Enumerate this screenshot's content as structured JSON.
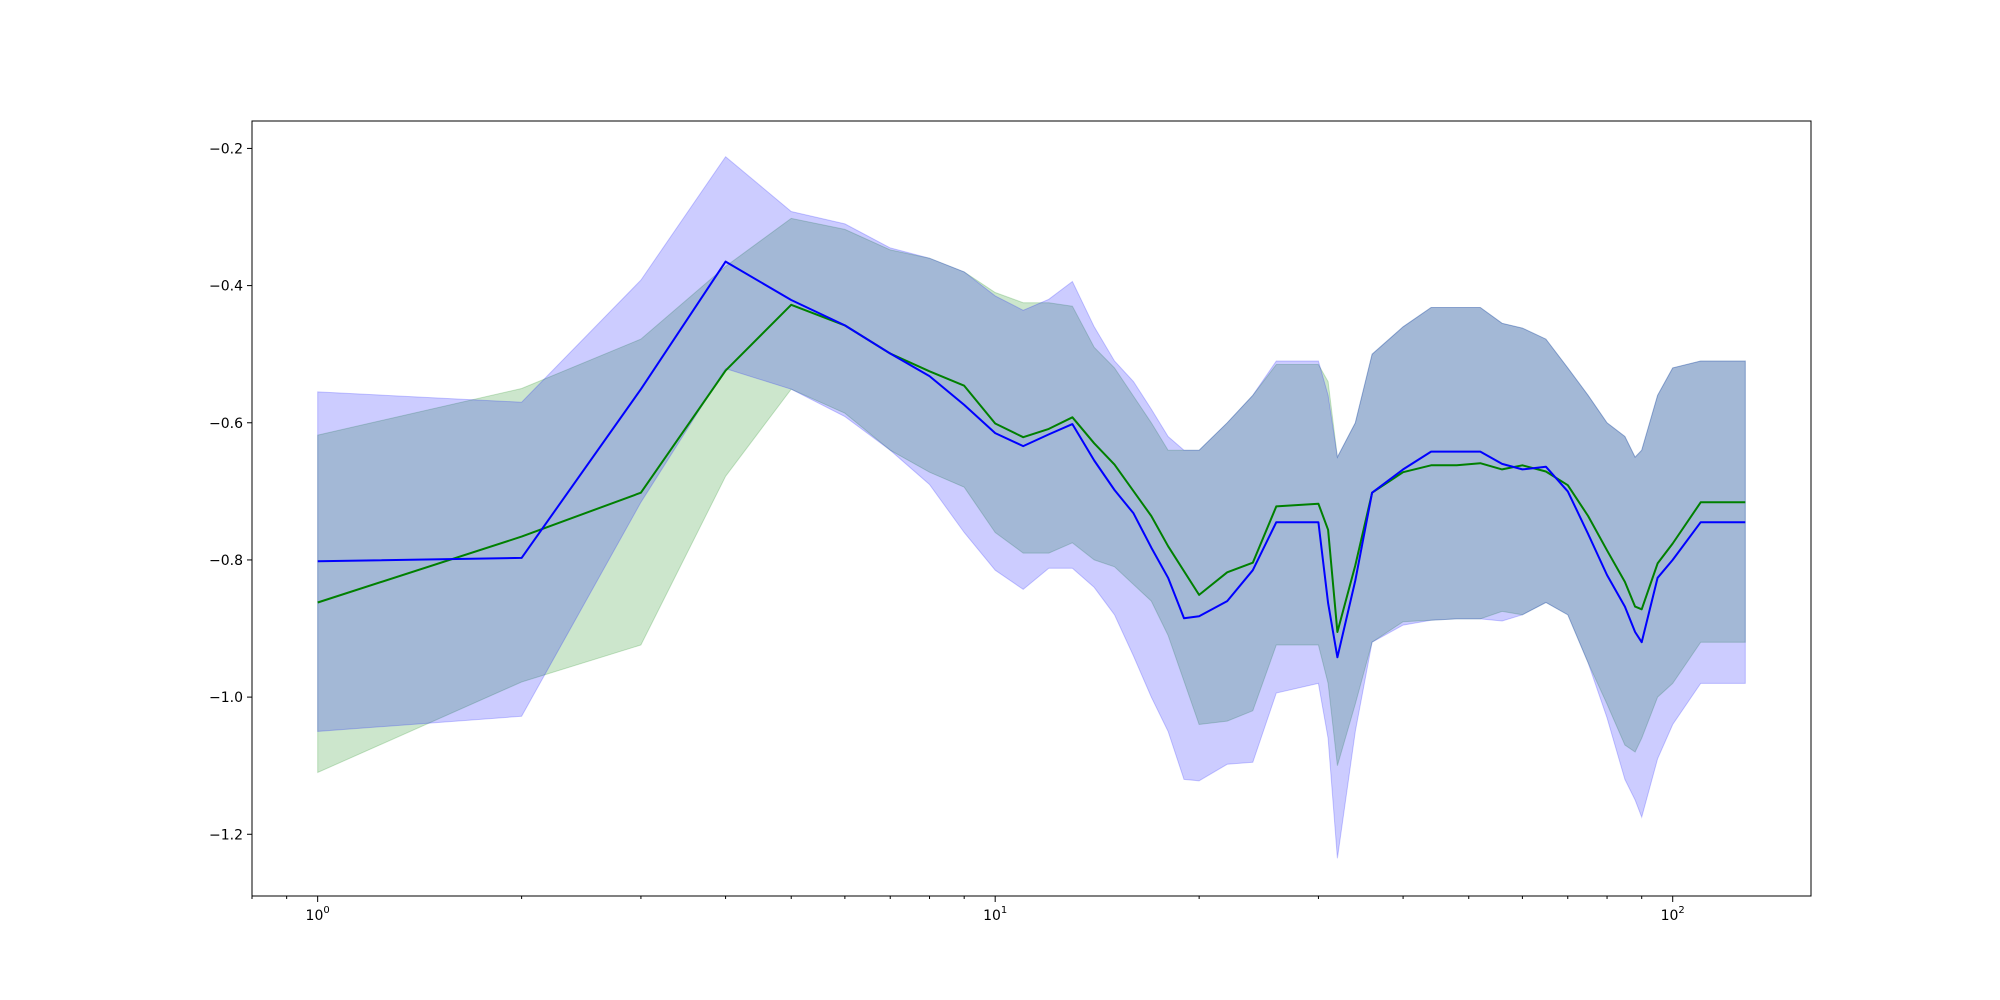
{
  "chart_data": {
    "type": "line",
    "x_scale": "log",
    "xlim": [
      0.8,
      160
    ],
    "ylim": [
      -1.29,
      -0.16
    ],
    "grid": false,
    "legend": "none",
    "x_ticks": [
      {
        "value": 1,
        "base": "10",
        "exp": "0"
      },
      {
        "value": 10,
        "base": "10",
        "exp": "1"
      },
      {
        "value": 100,
        "base": "10",
        "exp": "2"
      }
    ],
    "y_ticks": [
      {
        "value": -0.2,
        "label": "−0.2"
      },
      {
        "value": -0.4,
        "label": "−0.4"
      },
      {
        "value": -0.6,
        "label": "−0.6"
      },
      {
        "value": -0.8,
        "label": "−0.8"
      },
      {
        "value": -1.0,
        "label": "−1.0"
      },
      {
        "value": -1.2,
        "label": "−1.2"
      }
    ],
    "series": [
      {
        "color": "#008000",
        "band_color": "#008000",
        "band_opacity": 0.2,
        "x": [
          1,
          2,
          3,
          4,
          5,
          6,
          7,
          8,
          9,
          10,
          11,
          12,
          13,
          14,
          15,
          17,
          18,
          20,
          22,
          24,
          26,
          30,
          31,
          32,
          34,
          36,
          40,
          44,
          48,
          52,
          56,
          60,
          65,
          70,
          75,
          80,
          85,
          88,
          90,
          95,
          100,
          110,
          128
        ],
        "y": [
          -0.862,
          -0.766,
          -0.702,
          -0.524,
          -0.428,
          -0.458,
          -0.499,
          -0.525,
          -0.546,
          -0.601,
          -0.621,
          -0.609,
          -0.592,
          -0.63,
          -0.661,
          -0.736,
          -0.78,
          -0.851,
          -0.818,
          -0.804,
          -0.722,
          -0.718,
          -0.756,
          -0.905,
          -0.808,
          -0.702,
          -0.672,
          -0.662,
          -0.662,
          -0.659,
          -0.668,
          -0.662,
          -0.671,
          -0.691,
          -0.736,
          -0.786,
          -0.832,
          -0.868,
          -0.872,
          -0.805,
          -0.776,
          -0.716,
          -0.716
        ],
        "lower": [
          -1.11,
          -0.978,
          -0.924,
          -0.678,
          -0.551,
          -0.586,
          -0.64,
          -0.672,
          -0.694,
          -0.76,
          -0.79,
          -0.79,
          -0.775,
          -0.8,
          -0.81,
          -0.86,
          -0.91,
          -1.04,
          -1.035,
          -1.02,
          -0.924,
          -0.924,
          -0.98,
          -1.1,
          -1.01,
          -0.92,
          -0.89,
          -0.888,
          -0.886,
          -0.886,
          -0.875,
          -0.88,
          -0.862,
          -0.88,
          -0.95,
          -1.01,
          -1.07,
          -1.08,
          -1.06,
          -1.0,
          -0.98,
          -0.92,
          -0.92
        ],
        "upper": [
          -0.618,
          -0.55,
          -0.478,
          -0.372,
          -0.302,
          -0.318,
          -0.348,
          -0.36,
          -0.38,
          -0.41,
          -0.425,
          -0.425,
          -0.43,
          -0.49,
          -0.52,
          -0.6,
          -0.64,
          -0.64,
          -0.6,
          -0.56,
          -0.515,
          -0.515,
          -0.54,
          -0.65,
          -0.6,
          -0.5,
          -0.46,
          -0.432,
          -0.432,
          -0.432,
          -0.455,
          -0.462,
          -0.478,
          -0.52,
          -0.56,
          -0.6,
          -0.62,
          -0.65,
          -0.64,
          -0.56,
          -0.52,
          -0.51,
          -0.51
        ]
      },
      {
        "color": "#0000ff",
        "band_color": "#0000ff",
        "band_opacity": 0.2,
        "x": [
          1,
          2,
          3,
          4,
          5,
          6,
          7,
          8,
          9,
          10,
          11,
          12,
          13,
          14,
          15,
          16,
          17,
          18,
          19,
          20,
          22,
          24,
          26,
          30,
          31,
          32,
          34,
          36,
          40,
          44,
          48,
          52,
          56,
          60,
          65,
          70,
          75,
          80,
          85,
          88,
          90,
          95,
          100,
          110,
          128
        ],
        "y": [
          -0.802,
          -0.797,
          -0.551,
          -0.365,
          -0.421,
          -0.458,
          -0.499,
          -0.532,
          -0.574,
          -0.615,
          -0.634,
          -0.617,
          -0.602,
          -0.655,
          -0.698,
          -0.732,
          -0.782,
          -0.826,
          -0.885,
          -0.882,
          -0.86,
          -0.815,
          -0.745,
          -0.745,
          -0.863,
          -0.942,
          -0.83,
          -0.702,
          -0.668,
          -0.642,
          -0.642,
          -0.642,
          -0.66,
          -0.668,
          -0.664,
          -0.7,
          -0.762,
          -0.822,
          -0.868,
          -0.905,
          -0.92,
          -0.826,
          -0.8,
          -0.745,
          -0.745
        ],
        "lower": [
          -1.05,
          -1.028,
          -0.716,
          -0.521,
          -0.551,
          -0.591,
          -0.64,
          -0.69,
          -0.76,
          -0.815,
          -0.843,
          -0.812,
          -0.812,
          -0.84,
          -0.88,
          -0.94,
          -1.0,
          -1.05,
          -1.12,
          -1.122,
          -1.098,
          -1.095,
          -0.994,
          -0.98,
          -1.06,
          -1.235,
          -1.05,
          -0.92,
          -0.895,
          -0.888,
          -0.886,
          -0.886,
          -0.889,
          -0.88,
          -0.862,
          -0.88,
          -0.95,
          -1.03,
          -1.12,
          -1.15,
          -1.175,
          -1.09,
          -1.04,
          -0.98,
          -0.98
        ],
        "upper": [
          -0.555,
          -0.57,
          -0.392,
          -0.212,
          -0.292,
          -0.31,
          -0.345,
          -0.36,
          -0.38,
          -0.415,
          -0.436,
          -0.42,
          -0.394,
          -0.46,
          -0.51,
          -0.54,
          -0.58,
          -0.62,
          -0.64,
          -0.64,
          -0.6,
          -0.56,
          -0.51,
          -0.51,
          -0.56,
          -0.65,
          -0.6,
          -0.5,
          -0.46,
          -0.432,
          -0.432,
          -0.432,
          -0.455,
          -0.462,
          -0.478,
          -0.52,
          -0.56,
          -0.6,
          -0.62,
          -0.65,
          -0.64,
          -0.56,
          -0.52,
          -0.51,
          -0.51
        ]
      }
    ]
  }
}
